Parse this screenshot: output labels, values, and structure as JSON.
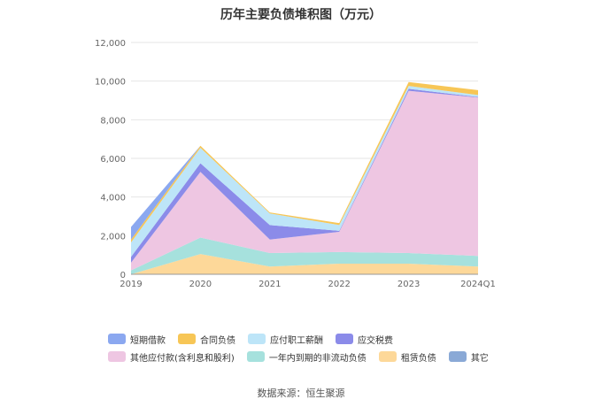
{
  "title": "历年主要负债堆积图（万元）",
  "source": "数据来源：恒生聚源",
  "chart_data": {
    "type": "area",
    "stacked": true,
    "categories": [
      "2019",
      "2020",
      "2021",
      "2022",
      "2023",
      "2024Q1"
    ],
    "ylim": [
      0,
      12000
    ],
    "yticks": [
      "0",
      "2,000",
      "4,000",
      "6,000",
      "8,000",
      "10,000",
      "12,000"
    ],
    "grid": true,
    "legend_position": "bottom",
    "series": [
      {
        "name": "租赁负债",
        "color": "#fdd899",
        "values": [
          0,
          1050,
          400,
          550,
          550,
          400
        ]
      },
      {
        "name": "一年内到期的非流动负债",
        "color": "#a6e1dd",
        "values": [
          200,
          850,
          700,
          600,
          550,
          550
        ]
      },
      {
        "name": "其他应付款(含利息和股利)",
        "color": "#eec6e2",
        "values": [
          400,
          3400,
          700,
          1050,
          8400,
          8200
        ]
      },
      {
        "name": "应交税费",
        "color": "#8b8be9",
        "values": [
          300,
          450,
          750,
          50,
          100,
          30
        ]
      },
      {
        "name": "应付职工薪酬",
        "color": "#bde5f8",
        "values": [
          750,
          800,
          600,
          300,
          150,
          100
        ]
      },
      {
        "name": "合同负债",
        "color": "#f7c656",
        "values": [
          150,
          100,
          50,
          100,
          200,
          250
        ]
      },
      {
        "name": "短期借款",
        "color": "#8ba8f0",
        "values": [
          650,
          0,
          0,
          0,
          0,
          0
        ]
      },
      {
        "name": "其它",
        "color": "#8aa9d6",
        "values": [
          0,
          0,
          0,
          0,
          0,
          0
        ]
      }
    ],
    "legend_order": [
      "短期借款",
      "合同负债",
      "应付职工薪酬",
      "应交税费",
      "其他应付款(含利息和股利)",
      "一年内到期的非流动负债",
      "租赁负债",
      "其它"
    ]
  }
}
